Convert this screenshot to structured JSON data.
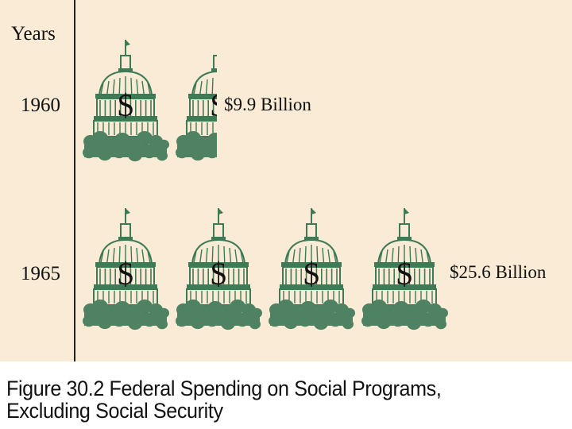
{
  "chart_data": {
    "type": "pictograph",
    "y_axis_label": "Years",
    "categories": [
      "1960",
      "1965"
    ],
    "values": [
      9.9,
      25.6
    ],
    "unit": "Billion",
    "value_labels": [
      "$9.9 Billion",
      "$25.6 Billion"
    ],
    "icon": "capitol-dome-dollar-icon",
    "icon_symbol": "$",
    "icon_value_billion": 6.4
  },
  "caption": {
    "line1": "Figure 30.2  Federal Spending on Social Programs,",
    "line2": "Excluding Social Security"
  },
  "colors": {
    "background": "#f9ebd6",
    "dome": "#3d7a55",
    "greenery": "#4e8262",
    "text": "#111111",
    "axis": "#222222"
  }
}
